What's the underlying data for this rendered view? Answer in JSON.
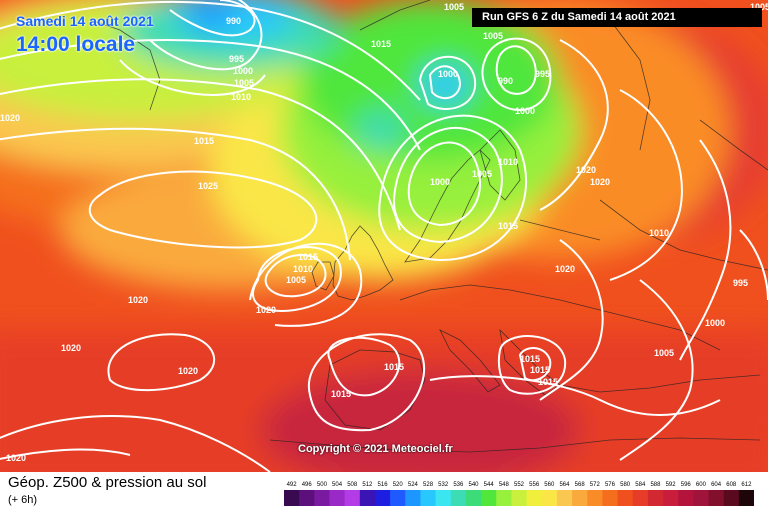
{
  "header": {
    "date_line": "Samedi 14 août 2021",
    "time_line": "14:00 locale",
    "run_info": "Run GFS 6 Z du Samedi 14 août 2021"
  },
  "copyright": "Copyright © 2021 Meteociel.fr",
  "footer": {
    "title": "Géop. Z500 & pression au sol",
    "subtitle": "(+ 6h)"
  },
  "legend": {
    "values": [
      "492",
      "496",
      "500",
      "504",
      "508",
      "512",
      "516",
      "520",
      "524",
      "528",
      "532",
      "536",
      "540",
      "544",
      "548",
      "552",
      "556",
      "560",
      "564",
      "568",
      "572",
      "576",
      "580",
      "584",
      "588",
      "592",
      "596",
      "600",
      "604",
      "608",
      "612"
    ],
    "colors": [
      "#3a0a50",
      "#5c107c",
      "#7a1aa0",
      "#9a2ac8",
      "#b43ce6",
      "#3a14b4",
      "#1e1ee0",
      "#1e5aff",
      "#1e96ff",
      "#28c8ff",
      "#3ce6f0",
      "#3cdcb4",
      "#3cdc78",
      "#50e63c",
      "#96f03c",
      "#c8f03c",
      "#f0f03c",
      "#fae646",
      "#fac850",
      "#faaa3c",
      "#fa8c28",
      "#f56e1e",
      "#f0501e",
      "#e63c28",
      "#d22832",
      "#c81e3c",
      "#b4143c",
      "#a0143c",
      "#82102d",
      "#5a0a1e",
      "#1e050a"
    ]
  },
  "pressure_labels": [
    "990",
    "995",
    "1000",
    "1005",
    "1010",
    "1020",
    "1015",
    "1025",
    "1005",
    "1000",
    "990",
    "995",
    "1000",
    "1005",
    "1015",
    "1005",
    "1010",
    "1000",
    "1005",
    "1015",
    "1020",
    "1020",
    "1020",
    "1010",
    "995",
    "1000",
    "1005",
    "1015",
    "1010",
    "1005",
    "1020",
    "1020",
    "1020",
    "1020",
    "1015",
    "1015",
    "1015",
    "1015",
    "1015",
    "1020"
  ]
}
